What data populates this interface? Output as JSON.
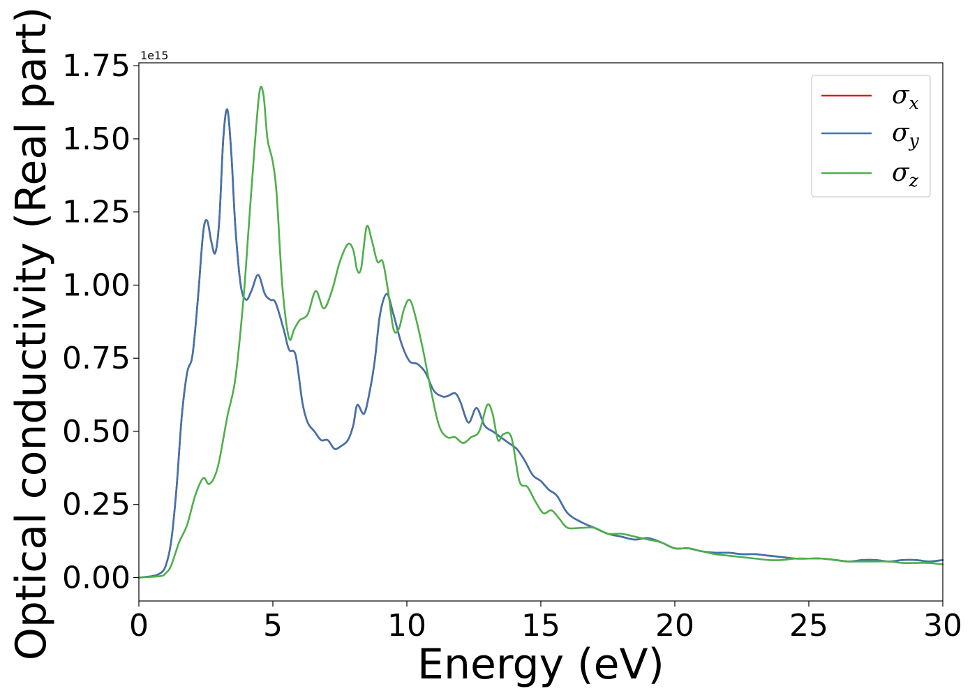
{
  "chart_data": {
    "type": "line",
    "title": "",
    "xlabel": "Energy (eV)",
    "ylabel": "Optical conductivity (Real part)",
    "y_offset_label": "1e15",
    "xlim": [
      0,
      30
    ],
    "ylim": [
      -0.08,
      1.76
    ],
    "x_ticks": [
      0,
      5,
      10,
      15,
      20,
      25,
      30
    ],
    "x_tick_labels": [
      "0",
      "5",
      "10",
      "15",
      "20",
      "25",
      "30"
    ],
    "y_ticks": [
      0,
      0.25,
      0.5,
      0.75,
      1.0,
      1.25,
      1.5,
      1.75
    ],
    "y_tick_labels": [
      "0.00",
      "0.25",
      "0.50",
      "0.75",
      "1.00",
      "1.25",
      "1.50",
      "1.75"
    ],
    "grid": false,
    "legend_position": "top-right",
    "series": [
      {
        "name": "σx",
        "symbol": "σ",
        "subscript": "x",
        "color": "#e41a1c",
        "x": [
          0,
          0.5,
          0.8,
          1.0,
          1.2,
          1.4,
          1.6,
          1.8,
          2.0,
          2.2,
          2.4,
          2.55,
          2.7,
          2.85,
          3.0,
          3.15,
          3.3,
          3.45,
          3.6,
          3.8,
          4.0,
          4.2,
          4.45,
          4.7,
          4.9,
          5.1,
          5.4,
          5.6,
          5.85,
          6.1,
          6.3,
          6.55,
          6.8,
          7.05,
          7.3,
          7.55,
          7.8,
          8.0,
          8.15,
          8.4,
          8.6,
          8.8,
          9.0,
          9.25,
          9.5,
          9.8,
          10.1,
          10.4,
          10.7,
          11.0,
          11.3,
          11.5,
          11.8,
          12.0,
          12.3,
          12.6,
          12.9,
          13.2,
          13.5,
          13.8,
          14.1,
          14.4,
          14.7,
          15.0,
          15.3,
          15.6,
          16.0,
          16.5,
          17.0,
          17.5,
          18.0,
          18.5,
          19.0,
          19.5,
          20.0,
          20.5,
          21.0,
          21.5,
          22.0,
          22.5,
          23.0,
          23.5,
          24.0,
          24.5,
          25.0,
          25.5,
          26.0,
          26.5,
          27.0,
          27.5,
          28.0,
          28.5,
          29.0,
          29.5,
          30.0
        ],
        "y": [
          0.0,
          0.005,
          0.015,
          0.04,
          0.12,
          0.3,
          0.55,
          0.7,
          0.76,
          0.95,
          1.18,
          1.22,
          1.15,
          1.11,
          1.22,
          1.5,
          1.6,
          1.45,
          1.2,
          1.0,
          0.95,
          0.98,
          1.035,
          0.97,
          0.95,
          0.94,
          0.85,
          0.78,
          0.76,
          0.6,
          0.53,
          0.5,
          0.47,
          0.47,
          0.44,
          0.45,
          0.47,
          0.52,
          0.59,
          0.56,
          0.63,
          0.74,
          0.9,
          0.97,
          0.9,
          0.8,
          0.74,
          0.73,
          0.7,
          0.64,
          0.62,
          0.62,
          0.63,
          0.6,
          0.53,
          0.58,
          0.52,
          0.5,
          0.48,
          0.46,
          0.44,
          0.4,
          0.35,
          0.33,
          0.3,
          0.28,
          0.22,
          0.19,
          0.17,
          0.15,
          0.14,
          0.13,
          0.135,
          0.12,
          0.1,
          0.1,
          0.09,
          0.085,
          0.085,
          0.08,
          0.08,
          0.075,
          0.07,
          0.065,
          0.065,
          0.065,
          0.06,
          0.055,
          0.06,
          0.06,
          0.055,
          0.06,
          0.06,
          0.055,
          0.06
        ]
      },
      {
        "name": "σy",
        "symbol": "σ",
        "subscript": "y",
        "color": "#3f74ad",
        "x": [
          0,
          0.5,
          0.8,
          1.0,
          1.2,
          1.4,
          1.6,
          1.8,
          2.0,
          2.2,
          2.4,
          2.55,
          2.7,
          2.85,
          3.0,
          3.15,
          3.3,
          3.45,
          3.6,
          3.8,
          4.0,
          4.2,
          4.45,
          4.7,
          4.9,
          5.1,
          5.4,
          5.6,
          5.85,
          6.1,
          6.3,
          6.55,
          6.8,
          7.05,
          7.3,
          7.55,
          7.8,
          8.0,
          8.15,
          8.4,
          8.6,
          8.8,
          9.0,
          9.25,
          9.5,
          9.8,
          10.1,
          10.4,
          10.7,
          11.0,
          11.3,
          11.5,
          11.8,
          12.0,
          12.3,
          12.6,
          12.9,
          13.2,
          13.5,
          13.8,
          14.1,
          14.4,
          14.7,
          15.0,
          15.3,
          15.6,
          16.0,
          16.5,
          17.0,
          17.5,
          18.0,
          18.5,
          19.0,
          19.5,
          20.0,
          20.5,
          21.0,
          21.5,
          22.0,
          22.5,
          23.0,
          23.5,
          24.0,
          24.5,
          25.0,
          25.5,
          26.0,
          26.5,
          27.0,
          27.5,
          28.0,
          28.5,
          29.0,
          29.5,
          30.0
        ],
        "y": [
          0.0,
          0.005,
          0.015,
          0.04,
          0.12,
          0.3,
          0.55,
          0.7,
          0.76,
          0.95,
          1.18,
          1.22,
          1.15,
          1.11,
          1.22,
          1.5,
          1.6,
          1.45,
          1.2,
          1.0,
          0.95,
          0.98,
          1.035,
          0.97,
          0.95,
          0.94,
          0.85,
          0.78,
          0.76,
          0.6,
          0.53,
          0.5,
          0.47,
          0.47,
          0.44,
          0.45,
          0.47,
          0.52,
          0.59,
          0.56,
          0.63,
          0.74,
          0.9,
          0.97,
          0.9,
          0.8,
          0.74,
          0.73,
          0.7,
          0.64,
          0.62,
          0.62,
          0.63,
          0.6,
          0.53,
          0.58,
          0.52,
          0.5,
          0.48,
          0.46,
          0.44,
          0.4,
          0.35,
          0.33,
          0.3,
          0.28,
          0.22,
          0.19,
          0.17,
          0.15,
          0.14,
          0.13,
          0.135,
          0.12,
          0.1,
          0.1,
          0.09,
          0.085,
          0.085,
          0.08,
          0.08,
          0.075,
          0.07,
          0.065,
          0.065,
          0.065,
          0.06,
          0.055,
          0.06,
          0.06,
          0.055,
          0.06,
          0.06,
          0.055,
          0.06
        ]
      },
      {
        "name": "σz",
        "symbol": "σ",
        "subscript": "z",
        "color": "#4daf4a",
        "x": [
          0,
          0.8,
          1.0,
          1.2,
          1.5,
          1.8,
          2.1,
          2.4,
          2.6,
          2.8,
          3.0,
          3.3,
          3.6,
          3.9,
          4.1,
          4.3,
          4.5,
          4.65,
          4.8,
          5.0,
          5.15,
          5.35,
          5.6,
          5.8,
          6.0,
          6.3,
          6.6,
          6.9,
          7.2,
          7.5,
          7.8,
          8.0,
          8.15,
          8.3,
          8.5,
          8.7,
          8.9,
          9.1,
          9.3,
          9.5,
          9.7,
          9.9,
          10.1,
          10.3,
          10.6,
          10.9,
          11.2,
          11.5,
          11.8,
          12.1,
          12.4,
          12.7,
          13.0,
          13.2,
          13.4,
          13.6,
          13.9,
          14.2,
          14.5,
          14.8,
          15.1,
          15.4,
          15.7,
          16.0,
          16.5,
          17.0,
          17.5,
          18.0,
          18.5,
          19.0,
          19.5,
          20.0,
          20.5,
          21.0,
          21.5,
          22.0,
          22.5,
          23.0,
          23.5,
          24.0,
          24.5,
          25.0,
          25.5,
          26.0,
          26.5,
          27.0,
          27.5,
          28.0,
          28.5,
          29.0,
          29.5,
          30.0
        ],
        "y": [
          0.0,
          0.005,
          0.015,
          0.04,
          0.12,
          0.18,
          0.28,
          0.34,
          0.32,
          0.34,
          0.4,
          0.55,
          0.68,
          0.95,
          1.2,
          1.45,
          1.66,
          1.65,
          1.5,
          1.42,
          1.3,
          1.0,
          0.82,
          0.85,
          0.88,
          0.9,
          0.98,
          0.92,
          0.98,
          1.08,
          1.14,
          1.12,
          1.05,
          1.06,
          1.2,
          1.15,
          1.08,
          1.08,
          0.98,
          0.85,
          0.85,
          0.92,
          0.95,
          0.9,
          0.78,
          0.64,
          0.52,
          0.48,
          0.48,
          0.46,
          0.48,
          0.5,
          0.59,
          0.56,
          0.47,
          0.49,
          0.48,
          0.33,
          0.31,
          0.26,
          0.22,
          0.23,
          0.2,
          0.17,
          0.17,
          0.17,
          0.15,
          0.15,
          0.14,
          0.13,
          0.12,
          0.1,
          0.1,
          0.09,
          0.08,
          0.075,
          0.07,
          0.065,
          0.06,
          0.06,
          0.065,
          0.065,
          0.065,
          0.06,
          0.055,
          0.055,
          0.055,
          0.055,
          0.05,
          0.05,
          0.05,
          0.045
        ]
      }
    ]
  }
}
